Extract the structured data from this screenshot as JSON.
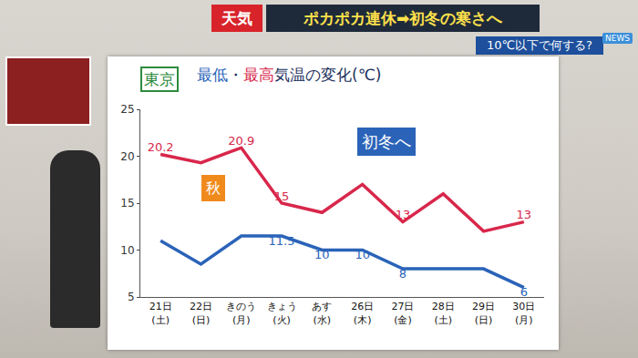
{
  "chart_data": {
    "type": "line",
    "title": "最低・最高気温の変化(℃)",
    "categories": [
      "21日(土)",
      "22日(日)",
      "きのう(月)",
      "きょう(火)",
      "あす(水)",
      "26日(木)",
      "27日(金)",
      "28日(土)",
      "29日(日)",
      "30日(月)"
    ],
    "series": [
      {
        "name": "最高",
        "color": "#d8274b",
        "values": [
          20.2,
          19.3,
          20.9,
          15,
          14,
          17,
          13,
          16,
          12,
          13
        ],
        "value_labels": [
          "20.2",
          null,
          "20.9",
          "15",
          null,
          null,
          "13",
          null,
          null,
          "13"
        ]
      },
      {
        "name": "最低",
        "color": "#2a63b8",
        "values": [
          11,
          8.5,
          11.5,
          11.5,
          10,
          10,
          8,
          8,
          8,
          6
        ],
        "value_labels": [
          null,
          null,
          null,
          "11.5",
          "10",
          "10",
          "8",
          null,
          null,
          "6"
        ]
      }
    ],
    "ylim": [
      5,
      25
    ],
    "yticks": [
      5,
      10,
      15,
      20,
      25
    ],
    "grid": false,
    "data_labels": true,
    "annotations": [
      "東京",
      "秋",
      "初冬へ"
    ]
  },
  "banner": {
    "tag": "天気",
    "headline": "ポカポカ連休➡初冬の寒さへ",
    "subhead": "10℃以下で何する?",
    "logo": "NEWS"
  }
}
